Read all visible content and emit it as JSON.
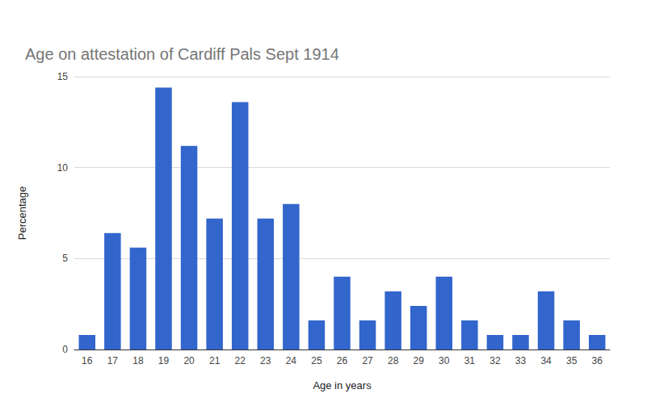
{
  "chart_data": {
    "type": "bar",
    "title": "Age on attestation of Cardiff Pals Sept 1914",
    "x_label": "Age in years",
    "y_label": "Percentage",
    "categories": [
      "16",
      "17",
      "18",
      "19",
      "20",
      "21",
      "22",
      "23",
      "24",
      "25",
      "26",
      "27",
      "28",
      "29",
      "30",
      "31",
      "32",
      "33",
      "34",
      "35",
      "36"
    ],
    "values": [
      0.8,
      6.4,
      5.6,
      14.4,
      11.2,
      7.2,
      13.6,
      7.2,
      8.0,
      1.6,
      4.0,
      1.6,
      3.2,
      2.4,
      4.0,
      1.6,
      0.8,
      0.8,
      3.2,
      1.6,
      0.8
    ],
    "color": "#3366cc",
    "ylim": [
      0,
      15
    ],
    "yticks": [
      0,
      5,
      10,
      15
    ],
    "grid": true
  }
}
